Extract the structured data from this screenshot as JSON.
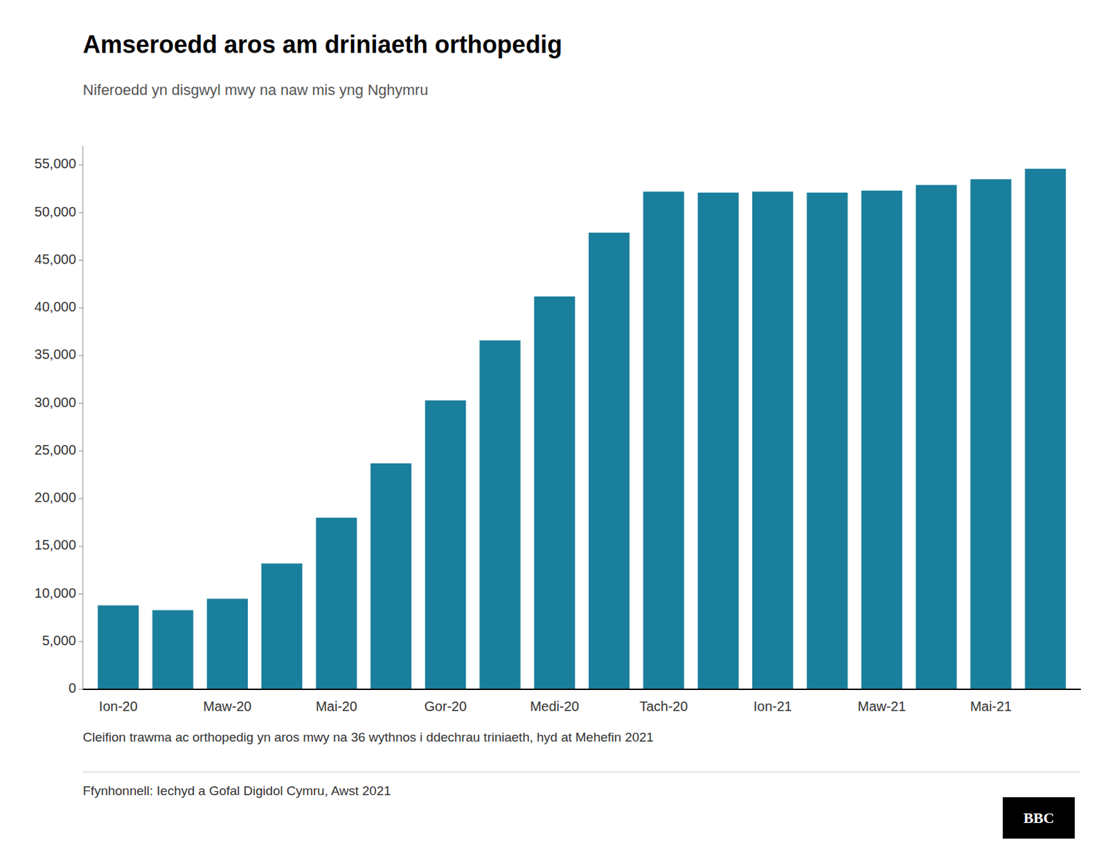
{
  "chart_data": {
    "type": "bar",
    "title": "Amseroedd aros am driniaeth orthopedig",
    "subtitle": "Niferoedd yn disgwyl mwy na naw mis yng Nghymru",
    "annotations": [
      "Cleifion trawma ac orthopedig yn aros mwy na 36 wythnos i ddechrau triniaeth, hyd at Mehefin 2021",
      "Ffynhonnell: Iechyd a Gofal Digidol Cymru, Awst 2021",
      "BBC"
    ],
    "categories": [
      "Ion-20",
      null,
      "Maw-20",
      null,
      "Mai-20",
      null,
      "Gor-20",
      null,
      "Medi-20",
      null,
      "Tach-20",
      null,
      "Ion-21",
      null,
      "Maw-21",
      null,
      "Mai-21",
      null
    ],
    "values": [
      8800,
      8300,
      9500,
      13200,
      18000,
      23700,
      30300,
      36600,
      41200,
      47900,
      52200,
      52100,
      52200,
      52100,
      52300,
      52900,
      53500,
      54600
    ],
    "color": "#1a7f9c",
    "ylim": [
      0,
      57000
    ],
    "yticks": [
      0,
      {
        "value": 5000,
        "label": "5,000"
      },
      {
        "value": 10000,
        "label": "10,000"
      },
      {
        "value": 15000,
        "label": "15,000"
      },
      {
        "value": 20000,
        "label": "20,000"
      },
      {
        "value": 25000,
        "label": "25,000"
      },
      {
        "value": 30000,
        "label": "30,000"
      },
      {
        "value": 35000,
        "label": "35,000"
      },
      {
        "value": 40000,
        "label": "40,000"
      },
      {
        "value": 45000,
        "label": "45,000"
      },
      {
        "value": 50000,
        "label": "50,000"
      },
      {
        "value": 55000,
        "label": "55,000"
      }
    ],
    "grid": false
  }
}
